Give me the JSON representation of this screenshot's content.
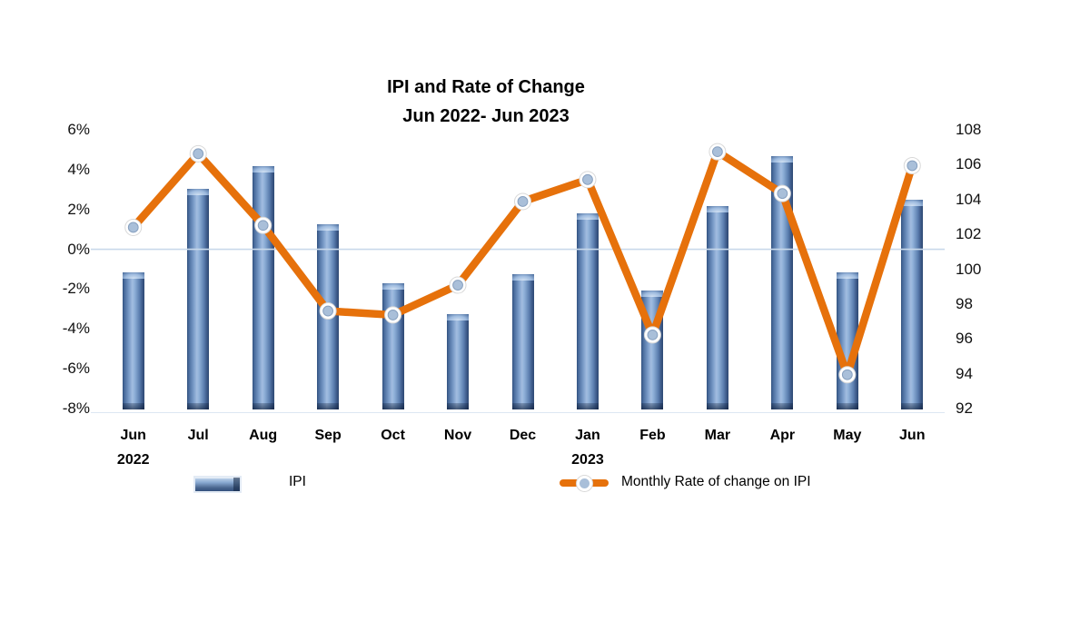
{
  "title": {
    "line1": "IPI and Rate of Change",
    "line2": "Jun 2022- Jun 2023"
  },
  "legend": {
    "ipi_label": "IPI",
    "rate_label": "Monthly Rate of change on IPI"
  },
  "chart_data": {
    "type": "combo-bar-line",
    "categories": [
      {
        "label": "Jun",
        "sublabel": "2022"
      },
      {
        "label": "Jul",
        "sublabel": ""
      },
      {
        "label": "Aug",
        "sublabel": ""
      },
      {
        "label": "Sep",
        "sublabel": ""
      },
      {
        "label": "Oct",
        "sublabel": ""
      },
      {
        "label": "Nov",
        "sublabel": ""
      },
      {
        "label": "Dec",
        "sublabel": ""
      },
      {
        "label": "Jan",
        "sublabel": "2023"
      },
      {
        "label": "Feb",
        "sublabel": ""
      },
      {
        "label": "Mar",
        "sublabel": ""
      },
      {
        "label": "Apr",
        "sublabel": ""
      },
      {
        "label": "May",
        "sublabel": ""
      },
      {
        "label": "Jun",
        "sublabel": ""
      }
    ],
    "series": [
      {
        "name": "IPI",
        "type": "bar",
        "axis": "right",
        "values": [
          99.8,
          104.6,
          105.9,
          102.6,
          99.2,
          97.4,
          99.7,
          103.2,
          98.8,
          103.6,
          106.5,
          99.8,
          104.0
        ]
      },
      {
        "name": "Monthly Rate of change on IPI",
        "type": "line",
        "axis": "left",
        "values": [
          1.1,
          4.8,
          1.2,
          -3.1,
          -3.3,
          -1.8,
          2.4,
          3.5,
          -4.3,
          4.9,
          2.8,
          -6.3,
          4.2
        ]
      }
    ],
    "left_axis": {
      "unit": "%",
      "ticks": [
        6,
        4,
        2,
        0,
        -2,
        -4,
        -6,
        -8
      ],
      "max": 6,
      "min": -8
    },
    "right_axis": {
      "ticks": [
        108,
        106,
        104,
        102,
        100,
        98,
        96,
        94,
        92
      ],
      "max": 108,
      "min": 92
    },
    "gridline_at_left_value": 0,
    "legend_position": "bottom",
    "colors": {
      "bar_dark": "#2e4a73",
      "bar_mid": "#5c80b3",
      "bar_light": "#a2bde0",
      "line": "#e6710b",
      "marker_fill": "#a9bfd9",
      "gridline": "#c9d9ea"
    }
  }
}
